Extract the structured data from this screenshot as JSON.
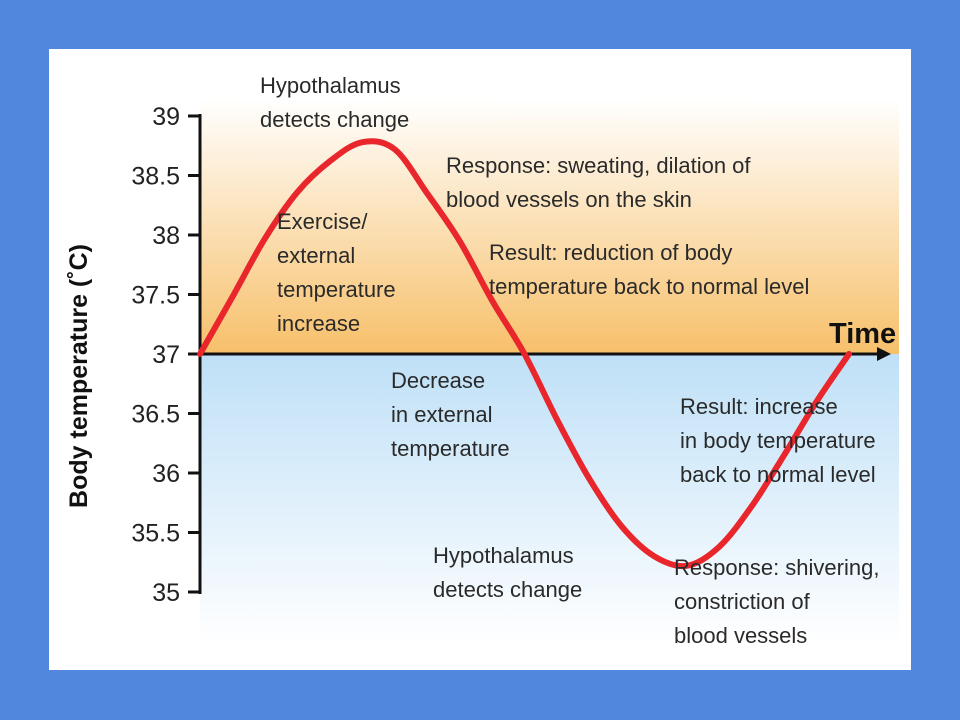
{
  "chart_data": {
    "type": "line",
    "ylabel": "Body temperature (˚C)",
    "xlabel": "Time",
    "ylim": [
      35,
      39
    ],
    "yticks": [
      "39",
      "38.5",
      "38",
      "37.5",
      "37",
      "36.5",
      "36",
      "35.5",
      "35"
    ],
    "baseline": 37,
    "series": [
      {
        "x": [
          0,
          0.05,
          0.1,
          0.15,
          0.2,
          0.25,
          0.3,
          0.35,
          0.4,
          0.45,
          0.5,
          0.55,
          0.6,
          0.65,
          0.7,
          0.75,
          0.8,
          0.85,
          0.9,
          0.95,
          1.0
        ],
        "values": [
          37.0,
          37.48,
          37.97,
          38.36,
          38.62,
          38.78,
          38.72,
          38.35,
          37.95,
          37.45,
          37.0,
          36.45,
          35.95,
          35.55,
          35.3,
          35.22,
          35.38,
          35.72,
          36.15,
          36.6,
          37.0
        ]
      }
    ],
    "annotations": [
      {
        "id": "hypothalamus-top",
        "lines": [
          "Hypothalamus",
          "detects change"
        ]
      },
      {
        "id": "exercise",
        "lines": [
          "Exercise/",
          "external",
          "temperature",
          "increase"
        ]
      },
      {
        "id": "response-sweating",
        "lines": [
          "Response: sweating, dilation of",
          "blood vessels on the skin"
        ]
      },
      {
        "id": "result-reduction",
        "lines": [
          "Result: reduction of body",
          "temperature back to normal level"
        ]
      },
      {
        "id": "decrease",
        "lines": [
          "Decrease",
          "in external",
          "temperature"
        ]
      },
      {
        "id": "result-increase",
        "lines": [
          "Result: increase",
          "in body temperature",
          "back to normal level"
        ]
      },
      {
        "id": "hypothalamus-bottom",
        "lines": [
          "Hypothalamus",
          "detects change"
        ]
      },
      {
        "id": "response-shivering",
        "lines": [
          "Response: shivering,",
          "constriction of",
          "blood vessels"
        ]
      }
    ],
    "colors": {
      "curve": "#E8262B",
      "warm_top": "#FFFFFF",
      "warm_bottom": "#F7C06A",
      "cool_top": "#BFE0F7",
      "cool_bottom": "#FFFFFF",
      "background": "#5187DC"
    }
  }
}
